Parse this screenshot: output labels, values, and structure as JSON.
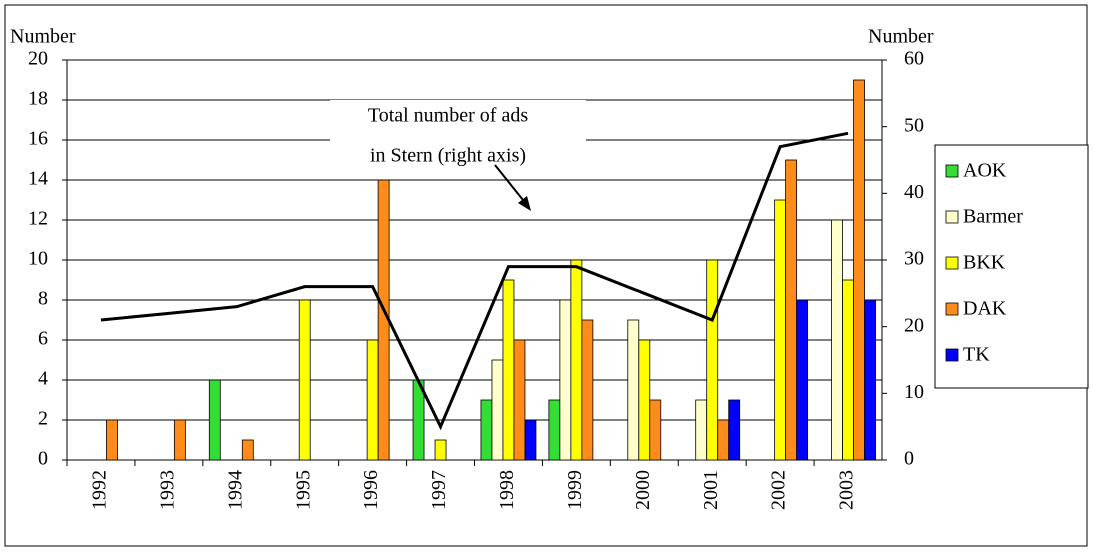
{
  "chart_data": {
    "type": "bar",
    "y_label": "Number",
    "y2_label": "Number",
    "annotation": [
      "Total number of ads",
      "in Stern (right axis)"
    ],
    "categories": [
      "1992",
      "1993",
      "1994",
      "1995",
      "1996",
      "1997",
      "1998",
      "1999",
      "2000",
      "2001",
      "2002",
      "2003"
    ],
    "series": [
      {
        "name": "AOK",
        "color": "#33dd33",
        "values": [
          null,
          null,
          4,
          null,
          null,
          4,
          3,
          3,
          null,
          null,
          null,
          null
        ]
      },
      {
        "name": "Barmer",
        "color": "#ffffcc",
        "values": [
          null,
          null,
          null,
          null,
          null,
          null,
          5,
          8,
          7,
          3,
          null,
          12
        ]
      },
      {
        "name": "BKK",
        "color": "#ffff00",
        "values": [
          null,
          null,
          null,
          8,
          6,
          1,
          9,
          10,
          6,
          10,
          13,
          9
        ]
      },
      {
        "name": "DAK",
        "color": "#ff8c1a",
        "values": [
          2,
          2,
          1,
          null,
          14,
          null,
          6,
          7,
          3,
          2,
          15,
          19
        ]
      },
      {
        "name": "TK",
        "color": "#0000ff",
        "values": [
          null,
          null,
          null,
          null,
          null,
          null,
          2,
          null,
          null,
          3,
          8,
          8
        ]
      },
      {
        "color": "#000000",
        "axis": "y2",
        "values": [
          21,
          22,
          23,
          26,
          26,
          5,
          29,
          29,
          25,
          21,
          47,
          49
        ]
      }
    ],
    "ylim": [
      0,
      20
    ],
    "yticks": [
      0,
      2,
      4,
      6,
      8,
      10,
      12,
      14,
      16,
      18,
      20
    ],
    "y2lim": [
      0,
      60
    ],
    "y2ticks": [
      0,
      10,
      20,
      30,
      40,
      50,
      60
    ],
    "grid": true,
    "legend": "right"
  }
}
